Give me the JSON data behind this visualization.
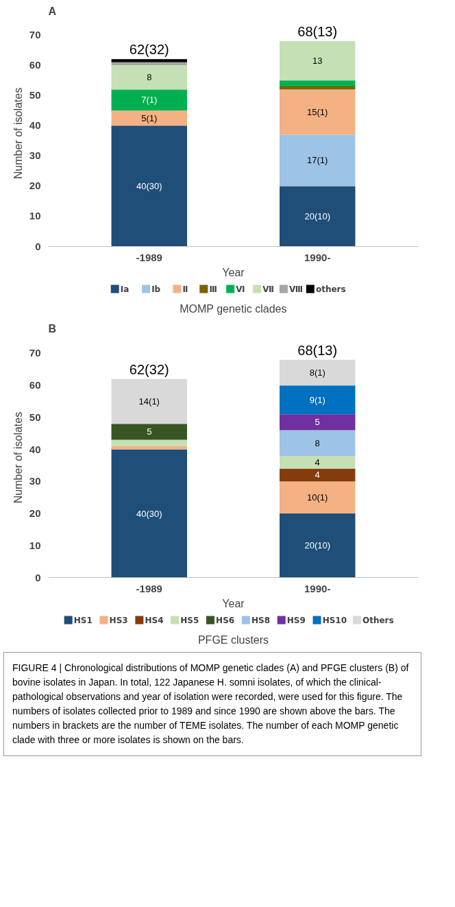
{
  "chart_data": [
    {
      "type": "bar",
      "stacked": true,
      "title": "A",
      "xlabel": "Year",
      "ylabel": "Number of isolates",
      "legend_title": "MOMP genetic clades",
      "legend": "bottom",
      "grid": false,
      "categories": [
        "-1989",
        "1990-"
      ],
      "ylim": [
        0,
        70
      ],
      "yticks": [
        0,
        10,
        20,
        30,
        40,
        50,
        60,
        70
      ],
      "totals": [
        "62(32)",
        "68(13)"
      ],
      "series": [
        {
          "name": "Ⅰa",
          "color": "#1f4e79",
          "values": [
            40,
            20
          ],
          "value_labels": [
            "40(30)",
            "20(10)"
          ]
        },
        {
          "name": "Ⅰb",
          "color": "#9dc3e6",
          "values": [
            0,
            17
          ],
          "value_labels": [
            null,
            "17(1)"
          ]
        },
        {
          "name": "Ⅱ",
          "color": "#f4b183",
          "values": [
            5,
            15
          ],
          "value_labels": [
            "5(1)",
            "15(1)"
          ]
        },
        {
          "name": "Ⅲ",
          "color": "#7f6000",
          "values": [
            0,
            1
          ],
          "value_labels": [
            null,
            null
          ]
        },
        {
          "name": "Ⅵ",
          "color": "#00b050",
          "values": [
            7,
            2
          ],
          "value_labels": [
            "7(1)",
            null
          ]
        },
        {
          "name": "Ⅶ",
          "color": "#c5e0b4",
          "values": [
            8,
            13
          ],
          "value_labels": [
            "8",
            "13"
          ]
        },
        {
          "name": "Ⅷ",
          "color": "#a6a6a6",
          "values": [
            1,
            0
          ],
          "value_labels": [
            null,
            null
          ]
        },
        {
          "name": "others",
          "color": "#000000",
          "values": [
            1,
            0
          ],
          "value_labels": [
            null,
            null
          ]
        }
      ]
    },
    {
      "type": "bar",
      "stacked": true,
      "title": "B",
      "xlabel": "Year",
      "ylabel": "Number of isolates",
      "legend_title": "PFGE clusters",
      "legend": "bottom",
      "grid": false,
      "categories": [
        "-1989",
        "1990-"
      ],
      "ylim": [
        0,
        70
      ],
      "yticks": [
        0,
        10,
        20,
        30,
        40,
        50,
        60,
        70
      ],
      "totals": [
        "62(32)",
        "68(13)"
      ],
      "series": [
        {
          "name": "HS1",
          "color": "#1f4e79",
          "values": [
            40,
            20
          ],
          "value_labels": [
            "40(30)",
            "20(10)"
          ]
        },
        {
          "name": "HS3",
          "color": "#f4b183",
          "values": [
            1,
            10
          ],
          "value_labels": [
            null,
            "10(1)"
          ]
        },
        {
          "name": "HS4",
          "color": "#843c0c",
          "values": [
            0,
            4
          ],
          "value_labels": [
            null,
            "4"
          ]
        },
        {
          "name": "HS5",
          "color": "#c5e0b4",
          "values": [
            2,
            4
          ],
          "value_labels": [
            null,
            "4"
          ]
        },
        {
          "name": "HS6",
          "color": "#375623",
          "values": [
            5,
            0
          ],
          "value_labels": [
            "5",
            null
          ]
        },
        {
          "name": "HS8",
          "color": "#9dc3e6",
          "values": [
            0,
            8
          ],
          "value_labels": [
            null,
            "8"
          ]
        },
        {
          "name": "HS9",
          "color": "#7030a0",
          "values": [
            0,
            5
          ],
          "value_labels": [
            null,
            "5"
          ]
        },
        {
          "name": "HS10",
          "color": "#0070c0",
          "values": [
            0,
            9
          ],
          "value_labels": [
            null,
            "9(1)"
          ]
        },
        {
          "name": "Others",
          "color": "#d9d9d9",
          "values": [
            14,
            8
          ],
          "value_labels": [
            "14(1)",
            "8(1)"
          ]
        }
      ],
      "annotations": [
        "FIGURE 4 | Chronological distributions of MOMP genetic clades (A) and PFGE clusters (B) of bovine isolates in Japan. In total, 122 Japanese H. somni isolates, of which the clinical-pathological observations and year of isolation were recorded, were used for this figure. The numbers of isolates collected prior to 1989 and since 1990 are shown above the bars. The numbers in brackets are the number of TEME isolates. The number of each MOMP genetic clade with three or more isolates is shown on the bars."
      ]
    }
  ]
}
